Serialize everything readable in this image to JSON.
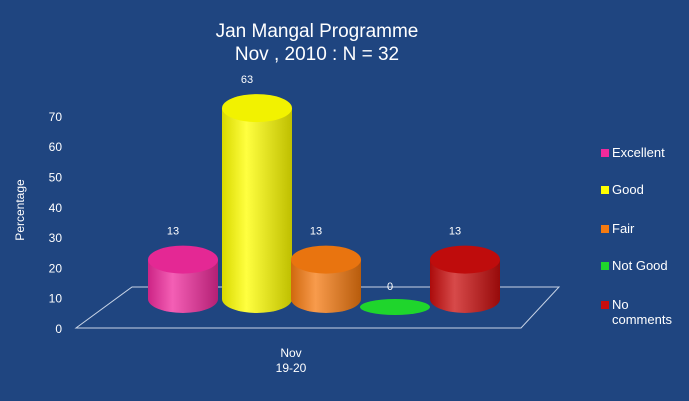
{
  "colors": {
    "background": "#1f4580",
    "floor": "#1f4580",
    "floor_edge": "#c8d4e6"
  },
  "chart_data": {
    "type": "bar",
    "title": "Jan Mangal Programme",
    "subtitle": "Nov , 2010 : N = 32",
    "ylabel": "Percentage",
    "ylim": [
      0,
      70
    ],
    "yticks": [
      0,
      10,
      20,
      30,
      40,
      50,
      60,
      70
    ],
    "x_category": [
      "Nov",
      "19-20"
    ],
    "series": [
      {
        "name": "Excellent",
        "value": 13,
        "label": "13",
        "color": "#f02a9c"
      },
      {
        "name": "Good",
        "value": 63,
        "label": "63",
        "color": "#ffff00"
      },
      {
        "name": "Fair",
        "value": 13,
        "label": "13",
        "color": "#f57a10"
      },
      {
        "name": "Not Good",
        "value": 0,
        "label": "0",
        "color": "#1fd52c"
      },
      {
        "name": "No\ncomments",
        "value": 13,
        "label": "13",
        "color": "#c90d0d"
      }
    ],
    "legend_position": "right",
    "grid": false
  }
}
